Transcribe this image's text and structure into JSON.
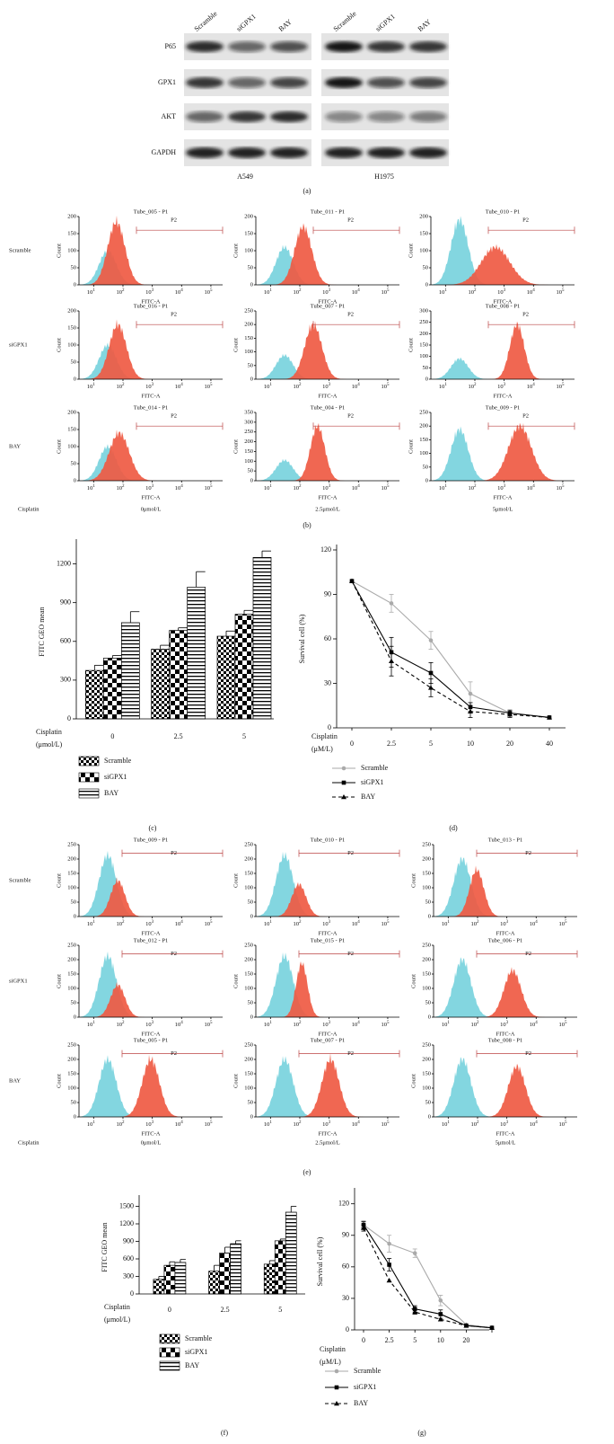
{
  "panel_a": {
    "label": "(a)",
    "lanes": [
      "Scramble",
      "siGPX1",
      "BAY",
      "Scramble",
      "siGPX1",
      "BAY"
    ],
    "proteins": [
      "P65",
      "GPX1",
      "AKT",
      "GAPDH"
    ],
    "cell_lines": [
      "A549",
      "H1975"
    ]
  },
  "panel_b": {
    "label": "(b)",
    "rows": [
      "Scramble",
      "siGPX1",
      "BAY"
    ],
    "cisplatin_label": "Cisplatin",
    "doses": [
      "0μmol/L",
      "2.5μmol/L",
      "5μmol/L"
    ],
    "x_label": "FITC-A",
    "y_label": "Count",
    "gate": "P2",
    "log_base": "10",
    "xtick_exponents": [
      1,
      2,
      3,
      4,
      5
    ],
    "plots": [
      {
        "title": "Tube_005 - P1",
        "yticks": [
          0,
          50,
          100,
          150,
          200
        ]
      },
      {
        "title": "Tube_011 - P1",
        "yticks": [
          0,
          50,
          100,
          150,
          200
        ]
      },
      {
        "title": "Tube_010 - P1",
        "yticks": [
          0,
          50,
          100,
          150,
          200
        ]
      },
      {
        "title": "Tube_016 - P1",
        "yticks": [
          0,
          50,
          100,
          150,
          200
        ]
      },
      {
        "title": "Tube_007 - P1",
        "yticks": [
          0,
          50,
          100,
          150,
          200,
          250
        ]
      },
      {
        "title": "Tube_008 - P1",
        "yticks": [
          0,
          50,
          100,
          150,
          200,
          250,
          300
        ]
      },
      {
        "title": "Tube_014 - P1",
        "yticks": [
          0,
          50,
          100,
          150,
          200
        ]
      },
      {
        "title": "Tube_004 - P1",
        "yticks": [
          0,
          50,
          100,
          150,
          200,
          250,
          300,
          350
        ]
      },
      {
        "title": "Tube_009 - P1",
        "yticks": [
          0,
          50,
          100,
          150,
          200,
          250
        ]
      }
    ]
  },
  "panel_e": {
    "label": "(e)",
    "rows": [
      "Scramble",
      "siGPX1",
      "BAY"
    ],
    "cisplatin_label": "Cisplatin",
    "doses": [
      "0μmol/L",
      "2.5μmol/L",
      "5μmol/L"
    ],
    "x_label": "FITC-A",
    "y_label": "Count",
    "gate": "P2",
    "log_base": "10",
    "xtick_exponents": [
      1,
      2,
      3,
      4,
      5
    ],
    "plots": [
      {
        "title": "Tube_009 - P1",
        "yticks": [
          0,
          50,
          100,
          150,
          200,
          250
        ]
      },
      {
        "title": "Tube_010 - P1",
        "yticks": [
          0,
          50,
          100,
          150,
          200,
          250
        ]
      },
      {
        "title": "Tube_013 - P1",
        "yticks": [
          0,
          50,
          100,
          150,
          200,
          250
        ]
      },
      {
        "title": "Tube_012 - P1",
        "yticks": [
          0,
          50,
          100,
          150,
          200,
          250
        ]
      },
      {
        "title": "Tube_015 - P1",
        "yticks": [
          0,
          50,
          100,
          150,
          200,
          250
        ]
      },
      {
        "title": "Tube_006 - P1",
        "yticks": [
          0,
          50,
          100,
          150,
          200,
          250
        ]
      },
      {
        "title": "Tube_005 - P1",
        "yticks": [
          0,
          50,
          100,
          150,
          200,
          250
        ]
      },
      {
        "title": "Tube_007 - P1",
        "yticks": [
          0,
          50,
          100,
          150,
          200,
          250
        ]
      },
      {
        "title": "Tube_008 - P1",
        "yticks": [
          0,
          50,
          100,
          150,
          200,
          250
        ]
      }
    ]
  },
  "chart_data": [
    {
      "type": "bar",
      "panel_label": "(c)",
      "y_label": "FITC GEO mean",
      "x_label": [
        "Cisplatin",
        "(μmol/L)"
      ],
      "categories": [
        "0",
        "2.5",
        "5"
      ],
      "ylim": [
        0,
        1350
      ],
      "yticks": [
        0,
        300,
        600,
        900,
        1200
      ],
      "series": [
        {
          "name": "Scramble",
          "fill": "checker-fine",
          "values": [
            375,
            540,
            640
          ],
          "errors": [
            40,
            30,
            40
          ]
        },
        {
          "name": "siGPX1",
          "fill": "checker-coarse",
          "values": [
            470,
            685,
            810
          ],
          "errors": [
            20,
            20,
            30
          ]
        },
        {
          "name": "BAY",
          "fill": "hlines",
          "values": [
            745,
            1020,
            1250
          ],
          "errors": [
            85,
            120,
            50
          ]
        }
      ]
    },
    {
      "type": "line",
      "panel_label": "(d)",
      "y_label": "Survival cell (%)",
      "x_label": [
        "Cisplatin",
        "(μM/L)"
      ],
      "categories": [
        "0",
        "2.5",
        "5",
        "10",
        "20",
        "40"
      ],
      "ylim": [
        0,
        120
      ],
      "yticks": [
        0,
        30,
        60,
        90,
        120
      ],
      "series": [
        {
          "name": "Scramble",
          "color": "#aaaaaa",
          "marker": "circle",
          "dashed": false,
          "values": [
            99,
            84,
            59,
            23,
            10,
            7
          ],
          "errors": [
            null,
            6,
            6,
            8,
            null,
            null
          ]
        },
        {
          "name": "siGPX1",
          "color": "#000000",
          "marker": "square",
          "dashed": false,
          "values": [
            99,
            51,
            37,
            14,
            10,
            7
          ],
          "errors": [
            null,
            10,
            7,
            3,
            2,
            null
          ]
        },
        {
          "name": "BAY",
          "color": "#000000",
          "marker": "triangle",
          "dashed": true,
          "values": [
            99,
            45,
            27,
            11,
            9,
            7
          ],
          "errors": [
            null,
            10,
            6,
            4,
            2,
            null
          ]
        }
      ]
    },
    {
      "type": "bar",
      "panel_label": "(f)",
      "y_label": "FITC GEO mean",
      "x_label": [
        "Cisplatin",
        "(μmol/L)"
      ],
      "categories": [
        "0",
        "2.5",
        "5"
      ],
      "ylim": [
        0,
        1600
      ],
      "yticks": [
        0,
        300,
        600,
        900,
        1200,
        1500
      ],
      "series": [
        {
          "name": "Scramble",
          "fill": "checker-fine",
          "values": [
            250,
            390,
            510
          ],
          "errors": [
            50,
            100,
            60
          ]
        },
        {
          "name": "siGPX1",
          "fill": "checker-coarse",
          "values": [
            490,
            700,
            910
          ],
          "errors": [
            60,
            100,
            30
          ]
        },
        {
          "name": "BAY",
          "fill": "hlines",
          "values": [
            540,
            860,
            1400
          ],
          "errors": [
            50,
            50,
            100
          ]
        }
      ]
    },
    {
      "type": "line",
      "panel_label": "(g)",
      "y_label": "Survival cell (%)",
      "x_label": [
        "Cisplatin",
        "(μM/L)"
      ],
      "categories": [
        "0",
        "2.5",
        "5",
        "10",
        "20",
        null
      ],
      "ylim": [
        0,
        130
      ],
      "yticks": [
        0,
        30,
        60,
        90,
        120
      ],
      "series": [
        {
          "name": "Scramble",
          "color": "#aaaaaa",
          "marker": "circle",
          "dashed": false,
          "values": [
            100,
            82,
            73,
            28,
            5,
            2
          ],
          "errors": [
            4,
            8,
            4,
            5,
            null,
            null
          ]
        },
        {
          "name": "siGPX1",
          "color": "#000000",
          "marker": "square",
          "dashed": false,
          "values": [
            100,
            62,
            20,
            15,
            4,
            2
          ],
          "errors": [
            3,
            6,
            3,
            4,
            null,
            null
          ]
        },
        {
          "name": "BAY",
          "color": "#000000",
          "marker": "triangle",
          "dashed": true,
          "values": [
            97,
            47,
            17,
            10,
            4,
            2
          ],
          "errors": [
            3,
            null,
            2,
            null,
            null,
            null
          ]
        }
      ]
    }
  ]
}
